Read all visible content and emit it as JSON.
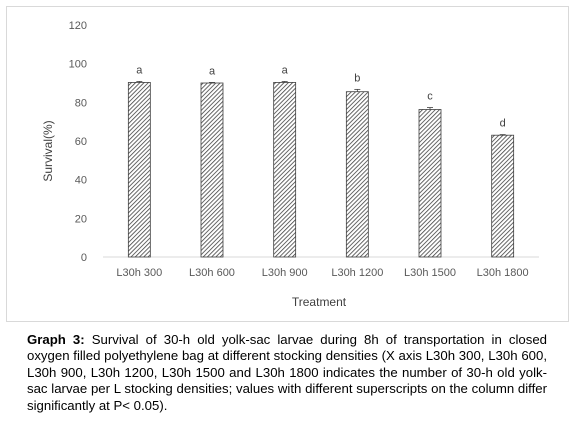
{
  "chart_data": {
    "type": "bar",
    "categories": [
      "L30h 300",
      "L30h 600",
      "L30h 900",
      "L30h 1200",
      "L30h 1500",
      "L30h 1800"
    ],
    "values": [
      90.3,
      90.0,
      90.3,
      85.5,
      76.3,
      63.0
    ],
    "errors": [
      0.5,
      0.3,
      0.5,
      1.2,
      1.0,
      0.3
    ],
    "annotations": [
      "a",
      "a",
      "a",
      "b",
      "c",
      "d"
    ],
    "xlabel": "Treatment",
    "ylabel": "Survival(%)",
    "ylim": [
      0,
      120
    ],
    "yticks": [
      0,
      20,
      40,
      60,
      80,
      100,
      120
    ],
    "bar_fill": "hatched-diagonal",
    "bar_color": "#404040",
    "grid": false,
    "legend": "none"
  },
  "caption": {
    "label": "Graph 3:",
    "text": " Survival of 30-h old yolk-sac larvae during 8h of transportation in closed oxygen filled polyethylene bag at different stocking densities (X axis L30h 300, L30h 600, L30h 900, L30h 1200, L30h 1500 and L30h 1800 indicates the number of 30-h old yolk-sac larvae per L stocking densities; values with different superscripts on the column differ significantly at P< 0.05)."
  }
}
